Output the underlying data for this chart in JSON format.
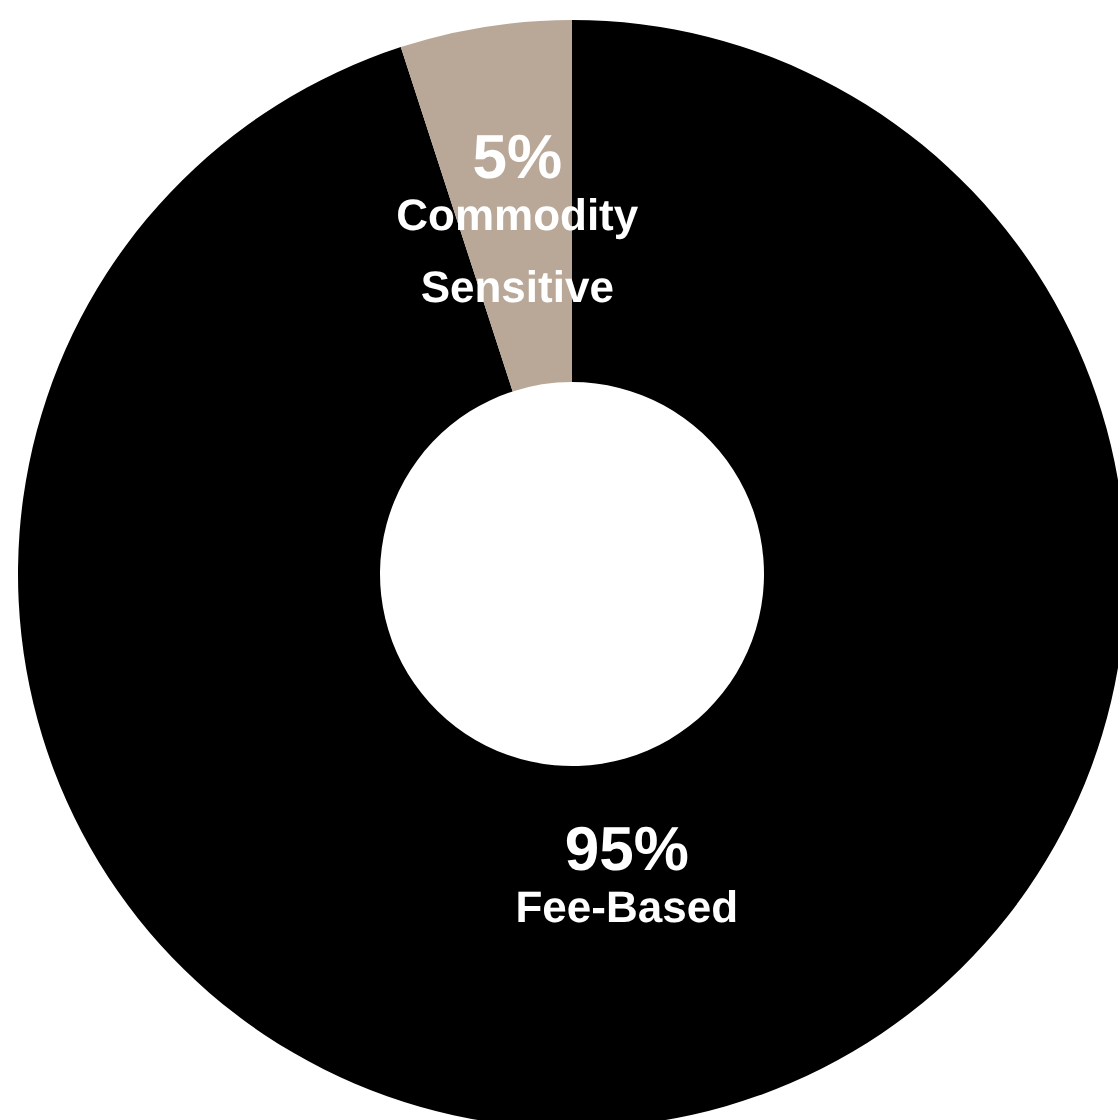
{
  "chart_data": {
    "type": "donut",
    "categories": [
      "Fee-Based",
      "Commodity Sensitive"
    ],
    "values": [
      95,
      5
    ],
    "colors": [
      "#000000",
      "#b9a898"
    ],
    "value_labels": [
      "95%",
      "5%"
    ]
  }
}
